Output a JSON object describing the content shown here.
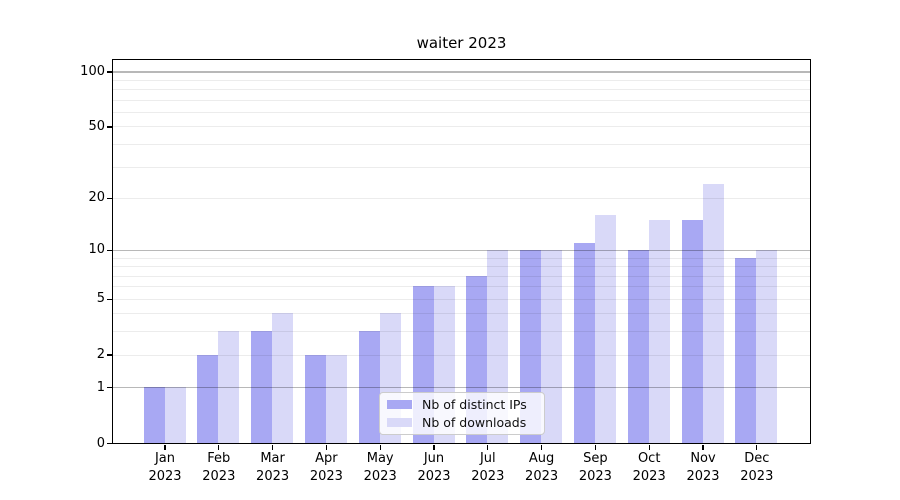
{
  "chart_data": {
    "type": "bar",
    "title": "waiter 2023",
    "categories": [
      "Jan",
      "Feb",
      "Mar",
      "Apr",
      "May",
      "Jun",
      "Jul",
      "Aug",
      "Sep",
      "Oct",
      "Nov",
      "Dec"
    ],
    "x_axis": {
      "year": "2023"
    },
    "y_axis": {
      "scale": "log1p",
      "ylim": [
        0,
        113
      ],
      "ticks": [
        {
          "v": 0,
          "label": "0"
        },
        {
          "v": 1,
          "label": "1"
        },
        {
          "v": 2,
          "label": "2"
        },
        {
          "v": 5,
          "label": "5"
        },
        {
          "v": 10,
          "label": "10"
        },
        {
          "v": 20,
          "label": "20"
        },
        {
          "v": 50,
          "label": "50"
        },
        {
          "v": 100,
          "label": "100"
        }
      ],
      "major_gridlines": [
        1,
        10,
        100
      ],
      "minor_gridlines": [
        2,
        3,
        4,
        5,
        6,
        7,
        8,
        9,
        20,
        30,
        40,
        50,
        60,
        70,
        80,
        90
      ]
    },
    "series": [
      {
        "name": "Nb of distinct IPs",
        "color": "#a8a8f3",
        "values": [
          1,
          2,
          3,
          2,
          3,
          6,
          7,
          10,
          11,
          10,
          15,
          9
        ]
      },
      {
        "name": "Nb of downloads",
        "color": "#d9d9f8",
        "values": [
          1,
          3,
          4,
          2,
          4,
          6,
          10,
          10,
          16,
          15,
          24,
          10
        ]
      }
    ],
    "legend": {
      "position": "lower center",
      "entries": [
        "Nb of distinct IPs",
        "Nb of downloads"
      ]
    }
  }
}
